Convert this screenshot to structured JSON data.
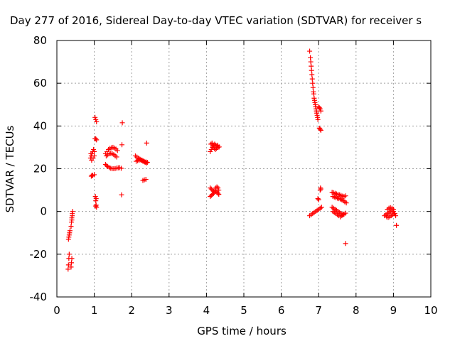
{
  "chart_data": {
    "type": "scatter",
    "title": "Day 277 of 2016, Sidereal Day-to-day VTEC variation (SDTVAR) for receiver s",
    "xlabel": "GPS time / hours",
    "ylabel": "SDTVAR / TECUs",
    "xlim": [
      0,
      10
    ],
    "ylim": [
      -40,
      80
    ],
    "xticks": [
      "0",
      "1",
      "2",
      "3",
      "4",
      "5",
      "6",
      "7",
      "8",
      "9",
      "10"
    ],
    "yticks": [
      "-40",
      "-20",
      "0",
      "20",
      "40",
      "60",
      "80"
    ],
    "grid": true,
    "marker": "+",
    "colors": {
      "points": "#ff0000",
      "axes": "#000000",
      "grid": "#a0a0a0"
    },
    "series": [
      {
        "name": "SDTVAR",
        "points": [
          [
            0.3,
            -27
          ],
          [
            0.31,
            -25
          ],
          [
            0.32,
            -22
          ],
          [
            0.33,
            -20
          ],
          [
            0.32,
            -12
          ],
          [
            0.33,
            -11
          ],
          [
            0.34,
            -10
          ],
          [
            0.35,
            -9
          ],
          [
            0.31,
            -13
          ],
          [
            0.38,
            -26
          ],
          [
            0.39,
            -24
          ],
          [
            0.4,
            -22
          ],
          [
            0.38,
            -7
          ],
          [
            0.39,
            -5
          ],
          [
            0.4,
            -3
          ],
          [
            0.41,
            -1
          ],
          [
            0.42,
            0
          ],
          [
            0.4,
            -4
          ],
          [
            0.41,
            -2
          ],
          [
            0.92,
            16.5
          ],
          [
            0.96,
            16.8
          ],
          [
            1.0,
            17.2
          ],
          [
            0.94,
            17
          ],
          [
            0.9,
            25
          ],
          [
            0.92,
            26
          ],
          [
            0.94,
            27
          ],
          [
            0.96,
            28
          ],
          [
            0.98,
            29
          ],
          [
            1.0,
            26
          ],
          [
            0.93,
            24
          ],
          [
            0.97,
            25
          ],
          [
            1.0,
            28
          ],
          [
            0.91,
            27
          ],
          [
            1.02,
            44
          ],
          [
            1.04,
            43
          ],
          [
            1.06,
            42
          ],
          [
            1.04,
            34
          ],
          [
            1.06,
            33.5
          ],
          [
            1.02,
            34
          ],
          [
            1.03,
            7
          ],
          [
            1.04,
            5
          ],
          [
            1.05,
            3
          ],
          [
            1.06,
            2
          ],
          [
            1.04,
            2.5
          ],
          [
            1.05,
            6
          ],
          [
            1.3,
            27
          ],
          [
            1.34,
            28
          ],
          [
            1.38,
            29
          ],
          [
            1.42,
            29.5
          ],
          [
            1.46,
            29.8
          ],
          [
            1.5,
            30
          ],
          [
            1.54,
            29.7
          ],
          [
            1.58,
            29.2
          ],
          [
            1.62,
            28.5
          ],
          [
            1.32,
            26
          ],
          [
            1.36,
            26.5
          ],
          [
            1.4,
            27
          ],
          [
            1.44,
            27.2
          ],
          [
            1.48,
            27
          ],
          [
            1.52,
            26.6
          ],
          [
            1.56,
            26
          ],
          [
            1.6,
            25.5
          ],
          [
            1.3,
            22
          ],
          [
            1.33,
            21.5
          ],
          [
            1.36,
            21
          ],
          [
            1.4,
            20.5
          ],
          [
            1.44,
            20.2
          ],
          [
            1.48,
            20
          ],
          [
            1.52,
            20
          ],
          [
            1.56,
            20.1
          ],
          [
            1.6,
            20.3
          ],
          [
            1.64,
            20.4
          ],
          [
            1.68,
            20.5
          ],
          [
            1.72,
            20.2
          ],
          [
            1.75,
            41.5
          ],
          [
            1.74,
            31.2
          ],
          [
            1.73,
            7.8
          ],
          [
            2.1,
            26
          ],
          [
            2.14,
            25.5
          ],
          [
            2.18,
            25
          ],
          [
            2.22,
            24.5
          ],
          [
            2.26,
            24
          ],
          [
            2.3,
            23.5
          ],
          [
            2.34,
            23.3
          ],
          [
            2.38,
            23.2
          ],
          [
            2.42,
            23
          ],
          [
            2.12,
            23.5
          ],
          [
            2.16,
            23.8
          ],
          [
            2.2,
            24
          ],
          [
            2.24,
            24.2
          ],
          [
            2.28,
            24
          ],
          [
            2.32,
            23.6
          ],
          [
            2.36,
            23
          ],
          [
            2.4,
            22.7
          ],
          [
            2.3,
            14.5
          ],
          [
            2.34,
            14.8
          ],
          [
            2.38,
            15
          ],
          [
            2.4,
            32
          ],
          [
            4.1,
            28
          ],
          [
            4.13,
            29
          ],
          [
            4.16,
            30
          ],
          [
            4.19,
            31
          ],
          [
            4.22,
            31.5
          ],
          [
            4.25,
            31
          ],
          [
            4.28,
            30.5
          ],
          [
            4.31,
            30
          ],
          [
            4.34,
            30.2
          ],
          [
            4.12,
            31.5
          ],
          [
            4.15,
            32
          ],
          [
            4.18,
            30.5
          ],
          [
            4.21,
            29.5
          ],
          [
            4.24,
            29
          ],
          [
            4.27,
            29.5
          ],
          [
            4.3,
            31
          ],
          [
            4.1,
            11
          ],
          [
            4.13,
            10.5
          ],
          [
            4.16,
            10
          ],
          [
            4.19,
            9.5
          ],
          [
            4.22,
            10
          ],
          [
            4.25,
            11
          ],
          [
            4.28,
            11.5
          ],
          [
            4.31,
            11
          ],
          [
            4.33,
            10
          ],
          [
            4.1,
            7
          ],
          [
            4.13,
            7.5
          ],
          [
            4.16,
            8
          ],
          [
            4.19,
            8.5
          ],
          [
            4.22,
            9
          ],
          [
            4.25,
            9.5
          ],
          [
            4.28,
            9
          ],
          [
            4.31,
            8.5
          ],
          [
            4.33,
            8
          ],
          [
            6.76,
            75
          ],
          [
            6.78,
            72
          ],
          [
            6.79,
            70
          ],
          [
            6.8,
            68
          ],
          [
            6.81,
            66
          ],
          [
            6.82,
            64
          ],
          [
            6.83,
            62
          ],
          [
            6.84,
            60
          ],
          [
            6.85,
            58
          ],
          [
            6.86,
            56
          ],
          [
            6.87,
            55
          ],
          [
            6.88,
            53
          ],
          [
            6.89,
            52
          ],
          [
            6.9,
            51
          ],
          [
            6.91,
            50
          ],
          [
            6.92,
            49
          ],
          [
            6.93,
            48
          ],
          [
            6.94,
            47
          ],
          [
            6.95,
            46
          ],
          [
            6.96,
            45
          ],
          [
            6.97,
            44
          ],
          [
            6.98,
            43
          ],
          [
            7.0,
            49
          ],
          [
            7.02,
            48.5
          ],
          [
            7.04,
            48
          ],
          [
            7.06,
            47
          ],
          [
            7.02,
            39
          ],
          [
            7.04,
            38.5
          ],
          [
            7.06,
            38
          ],
          [
            6.76,
            -2
          ],
          [
            6.8,
            -1.5
          ],
          [
            6.84,
            -1
          ],
          [
            6.88,
            -0.5
          ],
          [
            6.92,
            0
          ],
          [
            6.96,
            0.5
          ],
          [
            7.0,
            1
          ],
          [
            7.04,
            1.5
          ],
          [
            7.08,
            2
          ],
          [
            6.98,
            6
          ],
          [
            7.0,
            5.5
          ],
          [
            7.04,
            10
          ],
          [
            7.05,
            11
          ],
          [
            7.06,
            10.5
          ],
          [
            7.36,
            9
          ],
          [
            7.4,
            8.8
          ],
          [
            7.44,
            8.5
          ],
          [
            7.48,
            8.2
          ],
          [
            7.52,
            8
          ],
          [
            7.56,
            7.8
          ],
          [
            7.6,
            7.5
          ],
          [
            7.64,
            7.2
          ],
          [
            7.68,
            7
          ],
          [
            7.72,
            7.3
          ],
          [
            7.38,
            7
          ],
          [
            7.42,
            6.8
          ],
          [
            7.46,
            6.5
          ],
          [
            7.5,
            6.2
          ],
          [
            7.54,
            6
          ],
          [
            7.58,
            5.8
          ],
          [
            7.62,
            5.5
          ],
          [
            7.66,
            5
          ],
          [
            7.7,
            4.5
          ],
          [
            7.74,
            4
          ],
          [
            7.36,
            2
          ],
          [
            7.4,
            1.5
          ],
          [
            7.44,
            1
          ],
          [
            7.48,
            0.5
          ],
          [
            7.52,
            0
          ],
          [
            7.56,
            -0.5
          ],
          [
            7.6,
            -1
          ],
          [
            7.64,
            -1.5
          ],
          [
            7.68,
            -1.2
          ],
          [
            7.72,
            -0.8
          ],
          [
            7.38,
            0
          ],
          [
            7.42,
            -0.5
          ],
          [
            7.46,
            -1
          ],
          [
            7.5,
            -1.5
          ],
          [
            7.54,
            -2
          ],
          [
            7.58,
            -2.5
          ],
          [
            7.62,
            -2
          ],
          [
            7.66,
            -1.5
          ],
          [
            7.72,
            -15
          ],
          [
            8.76,
            -2
          ],
          [
            8.8,
            -1.5
          ],
          [
            8.84,
            -1
          ],
          [
            8.88,
            -0.5
          ],
          [
            8.92,
            0
          ],
          [
            8.96,
            0.5
          ],
          [
            9.0,
            1
          ],
          [
            8.82,
            -2.5
          ],
          [
            8.86,
            -2.8
          ],
          [
            8.9,
            -2.5
          ],
          [
            8.94,
            -2
          ],
          [
            8.98,
            -1.5
          ],
          [
            9.02,
            -1
          ],
          [
            8.84,
            1
          ],
          [
            8.88,
            1.5
          ],
          [
            8.92,
            1.8
          ],
          [
            8.96,
            1.5
          ],
          [
            9.0,
            0
          ],
          [
            9.04,
            -1
          ],
          [
            9.06,
            -2
          ],
          [
            9.08,
            -6.5
          ]
        ]
      }
    ]
  }
}
